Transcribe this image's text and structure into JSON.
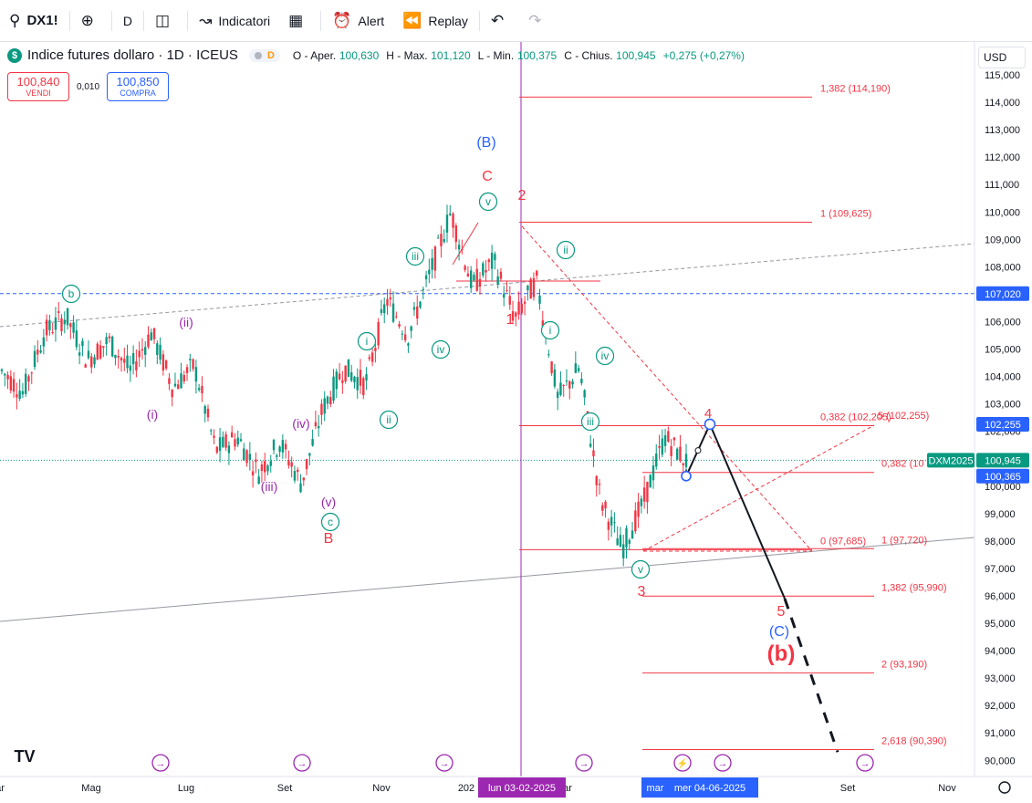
{
  "toolbar": {
    "symbol": "DX1!",
    "interval": "D",
    "indicators_label": "Indicatori",
    "alert_label": "Alert",
    "replay_label": "Replay"
  },
  "legend": {
    "title": "Indice futures dollaro · 1D · ICEUS",
    "badge": "D",
    "open_label": "O - Aper.",
    "open": "100,630",
    "high_label": "H - Max.",
    "high": "101,120",
    "low_label": "L - Min.",
    "low": "100,375",
    "close_label": "C - Chius.",
    "close": "100,945",
    "change": "+0,275 (+0,27%)"
  },
  "trade": {
    "sell_price": "100,840",
    "sell_label": "VENDI",
    "spread": "0,010",
    "buy_price": "100,850",
    "buy_label": "COMPRA"
  },
  "currency": "USD",
  "colors": {
    "up": "#089981",
    "down": "#f23645",
    "green_wave": "#089981",
    "purple_wave": "#9c27b0",
    "fib": "#f23645",
    "blue": "#2962ff",
    "vline": "#9c27b0"
  },
  "chart_data": {
    "type": "line",
    "title": "Indice futures dollaro · 1D · ICEUS",
    "x_ticks": [
      "ar",
      "Mag",
      "Lug",
      "Set",
      "Nov",
      "202",
      "ar",
      "mar",
      "g",
      "Set",
      "Nov"
    ],
    "y_ticks": [
      "115,000",
      "114,000",
      "113,000",
      "112,000",
      "111,000",
      "110,000",
      "109,000",
      "108,000",
      "107,000",
      "106,000",
      "105,000",
      "104,000",
      "103,000",
      "102,000",
      "101,000",
      "100,000",
      "99,000",
      "98,000",
      "97,000",
      "96,000",
      "95,000",
      "94,000",
      "93,000",
      "92,000",
      "91,000",
      "90,000"
    ],
    "ylim": [
      89.6,
      115.4
    ],
    "grid": false,
    "series": [
      {
        "values": [
          {
            "x": "2024-03",
            "y": 104.2
          },
          {
            "x": "2024-04",
            "y": 103.4
          },
          {
            "x": "2024-04",
            "y": 105.6
          },
          {
            "x": "2024-05",
            "y": 106.2
          },
          {
            "x": "2024-05",
            "y": 104.6
          },
          {
            "x": "2024-06",
            "y": 105.3
          },
          {
            "x": "2024-06",
            "y": 104.2
          },
          {
            "x": "2024-07",
            "y": 105.6
          },
          {
            "x": "2024-07",
            "y": 103.6
          },
          {
            "x": "2024-08",
            "y": 104.4
          },
          {
            "x": "2024-08",
            "y": 101.3
          },
          {
            "x": "2024-09",
            "y": 101.8
          },
          {
            "x": "2024-09",
            "y": 100.5
          },
          {
            "x": "2024-10",
            "y": 101.6
          },
          {
            "x": "2024-10",
            "y": 100.1
          },
          {
            "x": "2024-10",
            "y": 102.8
          },
          {
            "x": "2024-11",
            "y": 104.3
          },
          {
            "x": "2024-11",
            "y": 103.7
          },
          {
            "x": "2024-12",
            "y": 106.8
          },
          {
            "x": "2024-12",
            "y": 105.5
          },
          {
            "x": "2024-12",
            "y": 107.7
          },
          {
            "x": "2025-01",
            "y": 110.0
          },
          {
            "x": "2025-01",
            "y": 107.3
          },
          {
            "x": "2025-02",
            "y": 108.2
          },
          {
            "x": "2025-02",
            "y": 106.1
          },
          {
            "x": "2025-03",
            "y": 107.5
          },
          {
            "x": "2025-03",
            "y": 103.2
          },
          {
            "x": "2025-04",
            "y": 104.3
          },
          {
            "x": "2025-04",
            "y": 99.5
          },
          {
            "x": "2025-05",
            "y": 97.7
          },
          {
            "x": "2025-05",
            "y": 99.4
          },
          {
            "x": "2025-05",
            "y": 101.8
          },
          {
            "x": "2025-06",
            "y": 100.9
          }
        ]
      }
    ],
    "projection": {
      "points_y": [
        100.365,
        102.255,
        95.9,
        90.3
      ]
    },
    "fib_levels": [
      {
        "label": "1,382 (114,190)",
        "y": 114.19
      },
      {
        "label": "1 (109,625)",
        "y": 109.625
      },
      {
        "label": "0,382 (102,205)",
        "y": 102.205
      },
      {
        "label": "0,5 (102,255)",
        "y": 102.255
      },
      {
        "label": "0,382 (10",
        "y": 100.5
      },
      {
        "label": "0 (97,685)",
        "y": 97.685
      },
      {
        "label": "1 (97,720)",
        "y": 97.72
      },
      {
        "label": "1,382 (95,990)",
        "y": 95.99
      },
      {
        "label": "2 (93,190)",
        "y": 93.19
      },
      {
        "label": "2,618 (90,390)",
        "y": 90.39
      }
    ],
    "price_labels": [
      {
        "text": "107,020",
        "y": 107.02,
        "color": "#2962ff"
      },
      {
        "text": "102,255",
        "y": 102.255,
        "color": "#2962ff"
      },
      {
        "text": "100,945",
        "y": 100.945,
        "color": "#089981"
      },
      {
        "text": "100,365",
        "y": 100.365,
        "color": "#2962ff"
      }
    ],
    "contract_label": "DXM2025",
    "vline_label": "lun 03-02-2025",
    "crosshair_label": "mer 04-06-2025",
    "crosshair_prefix": "mar",
    "wave_labels": {
      "green": [
        "b",
        "c",
        "i",
        "ii",
        "iii",
        "iv",
        "v",
        "i",
        "ii",
        "iii",
        "iv",
        "v"
      ],
      "purple": [
        "(i)",
        "(ii)",
        "(iii)",
        "(iv)",
        "(v)"
      ],
      "red": [
        "B",
        "C",
        "1",
        "2",
        "3",
        "4",
        "5",
        "(b)"
      ],
      "blue": [
        "(B)",
        "(C)"
      ]
    }
  }
}
